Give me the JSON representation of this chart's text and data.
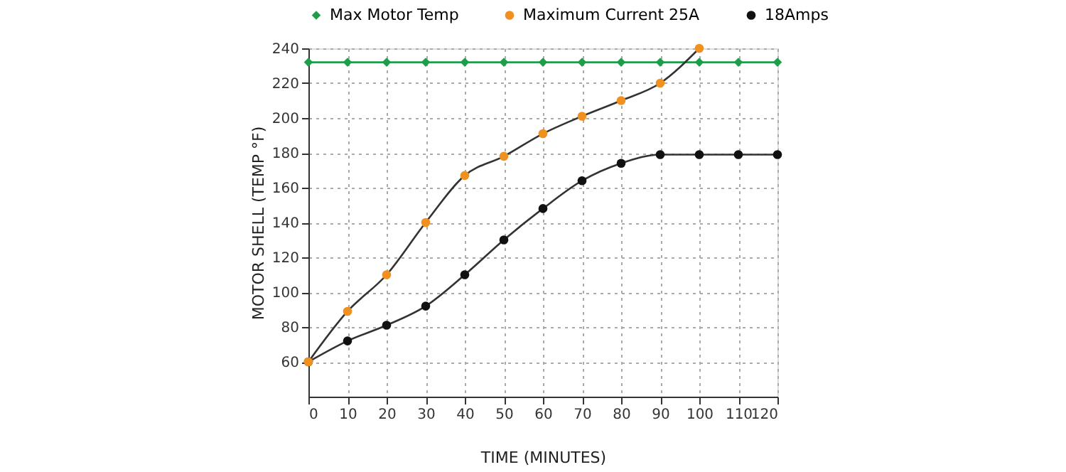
{
  "chart_data": {
    "type": "line",
    "xlabel": "TIME (MINUTES)",
    "ylabel": "MOTOR SHELL (TEMP °F)",
    "x": [
      0,
      10,
      20,
      30,
      40,
      50,
      60,
      70,
      80,
      90,
      100,
      110,
      120
    ],
    "series": [
      {
        "name": "Max Motor Temp",
        "color": "#1e9e4a",
        "marker": "diamond",
        "values": [
          232,
          232,
          232,
          232,
          232,
          232,
          232,
          232,
          232,
          232,
          232,
          232,
          232
        ]
      },
      {
        "name": "Maximum Current 25A",
        "color": "#f0901e",
        "marker": "circle",
        "values": [
          60,
          89,
          110,
          140,
          167,
          178,
          191,
          201,
          210,
          220,
          240,
          null,
          null
        ]
      },
      {
        "name": "18Amps",
        "color": "#111111",
        "marker": "circle",
        "values": [
          60,
          72,
          81,
          92,
          110,
          130,
          148,
          164,
          174,
          179,
          179,
          179,
          179
        ]
      }
    ],
    "xlim": [
      0,
      120
    ],
    "xticks": [
      0,
      10,
      20,
      30,
      40,
      50,
      60,
      70,
      80,
      90,
      100,
      110,
      120
    ],
    "ylim": [
      40,
      240
    ],
    "yticks": [
      60,
      80,
      100,
      120,
      140,
      160,
      180,
      200,
      220,
      240
    ],
    "grid": true,
    "legend": "top right",
    "line_style": "solid"
  }
}
